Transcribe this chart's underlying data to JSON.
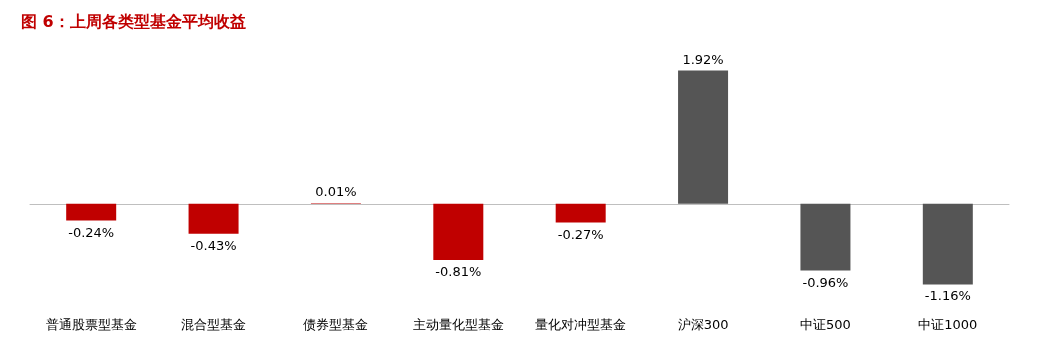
{
  "chart_data": {
    "type": "bar",
    "title": "图 6：上周各类型基金平均收益",
    "categories": [
      "普通股票型基金",
      "混合型基金",
      "债券型基金",
      "主动量化型基金",
      "量化对冲型基金",
      "沪深300",
      "中证500",
      "中证1000"
    ],
    "values": [
      -0.24,
      -0.43,
      0.01,
      -0.81,
      -0.27,
      1.92,
      -0.96,
      -1.16
    ],
    "colors": [
      "#c00000",
      "#c00000",
      "#c00000",
      "#c00000",
      "#c00000",
      "#555555",
      "#555555",
      "#555555"
    ],
    "value_labels": [
      "-0.24%",
      "-0.43%",
      "0.01%",
      "-0.81%",
      "-0.27%",
      "1.92%",
      "-0.96%",
      "-1.16%"
    ]
  }
}
